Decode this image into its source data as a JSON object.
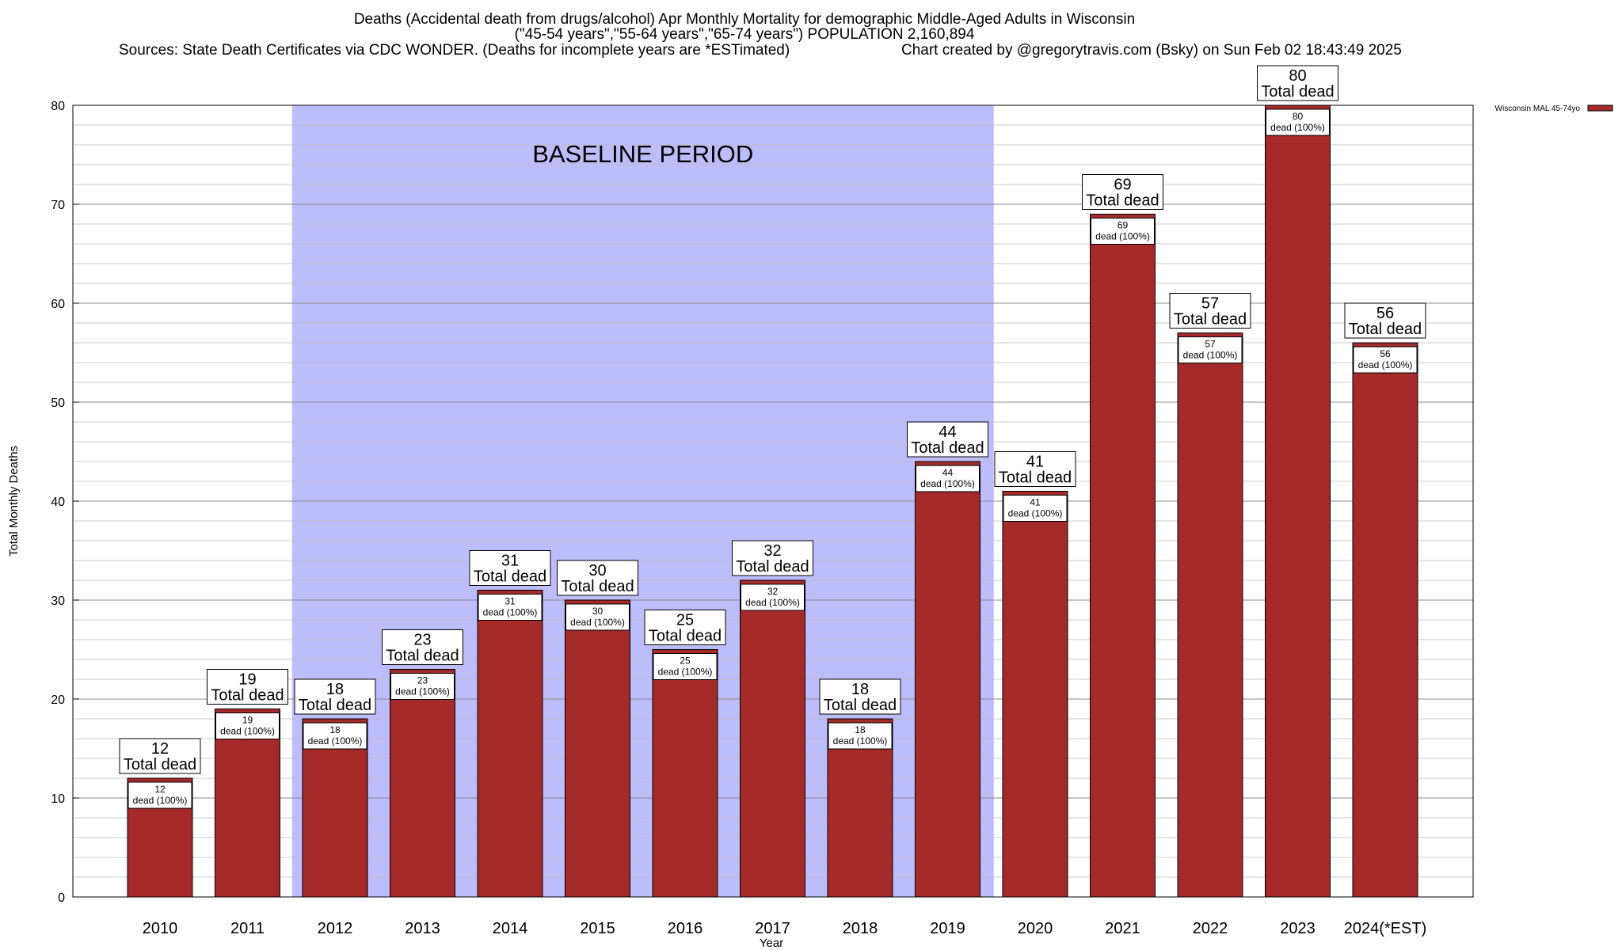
{
  "chart_data": {
    "type": "bar",
    "title_lines": [
      "Deaths (Accidental death from drugs/alcohol) Apr Monthly Mortality for demographic Middle-Aged Adults in Wisconsin",
      "(\"45-54 years\",\"55-64 years\",\"65-74 years\") POPULATION 2,160,894"
    ],
    "sources": "Sources: State Death Certificates via CDC WONDER. (Deaths for incomplete years are *ESTimated)",
    "credit": "Chart created by @gregorytravis.com (Bsky) on Sun Feb 02 18:43:49 2025",
    "xlabel": "Year",
    "ylabel": "Total Monthly Deaths",
    "ylim": [
      0,
      80
    ],
    "yticks": [
      0,
      10,
      20,
      30,
      40,
      50,
      60,
      70,
      80
    ],
    "categories": [
      "2010",
      "2011",
      "2012",
      "2013",
      "2014",
      "2015",
      "2016",
      "2017",
      "2018",
      "2019",
      "2020",
      "2021",
      "2022",
      "2023",
      "2024(*EST)"
    ],
    "series": [
      {
        "name": "Wisconsin MAL 45-74yo",
        "color": "#a52a2a",
        "values": [
          12,
          19,
          18,
          23,
          31,
          30,
          25,
          32,
          18,
          44,
          41,
          69,
          57,
          80,
          56
        ]
      }
    ],
    "total_label": "Total dead",
    "inner_label": "dead (100%)",
    "baseline": {
      "label": "BASELINE PERIOD",
      "from": "2012",
      "to": "2019",
      "color": "#bdbdfc"
    },
    "grid": true,
    "legend_position": "top-right"
  }
}
